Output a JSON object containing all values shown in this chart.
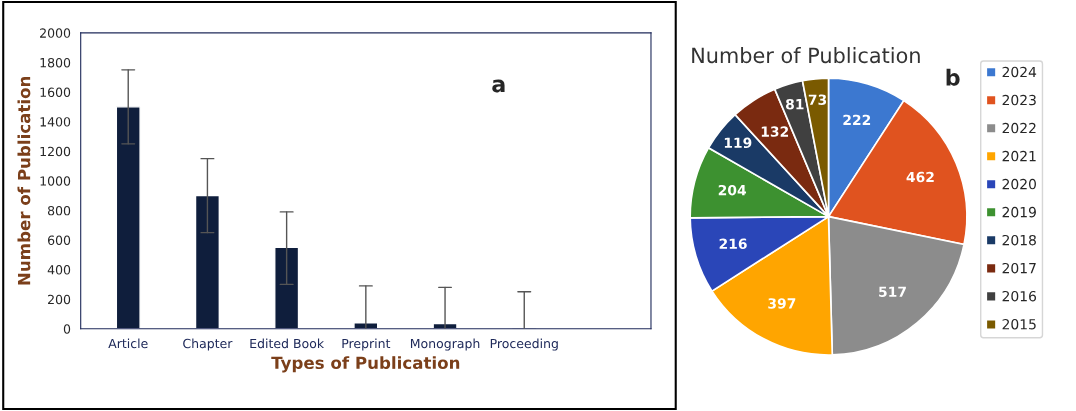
{
  "chart_data": [
    {
      "type": "bar",
      "xlabel": "Types of Publication",
      "ylabel": "Number of Publication",
      "categories": [
        "Article",
        "Chapter",
        "Edited Book",
        "Preprint",
        "Monograph",
        "Proceeding"
      ],
      "values": [
        1500,
        900,
        550,
        40,
        35,
        5
      ],
      "errors": [
        [
          1250,
          1750
        ],
        [
          650,
          1150
        ],
        [
          300,
          790
        ],
        [
          0,
          290
        ],
        [
          0,
          280
        ],
        [
          0,
          250
        ]
      ],
      "color": "#0f1e3c",
      "ylim": [
        0,
        2000
      ],
      "yticks": [
        0,
        200,
        400,
        600,
        800,
        1000,
        1200,
        1400,
        1600,
        1800,
        2000
      ],
      "grid": false,
      "annotations": [
        "a"
      ]
    },
    {
      "type": "pie",
      "title": "Number of Publication",
      "categories": [
        "2024",
        "2023",
        "2022",
        "2021",
        "2020",
        "2019",
        "2018",
        "2017",
        "2016",
        "2015"
      ],
      "values": [
        222,
        462,
        517,
        397,
        216,
        204,
        119,
        132,
        81,
        73
      ],
      "colors": [
        "#3c78d0",
        "#e0531f",
        "#8c8c8c",
        "#ffa500",
        "#2a46b8",
        "#3d9130",
        "#1a3a66",
        "#7a2a10",
        "#404040",
        "#7a5a00"
      ],
      "data_labels": true,
      "legend": "right",
      "annotations": [
        "b"
      ]
    }
  ]
}
